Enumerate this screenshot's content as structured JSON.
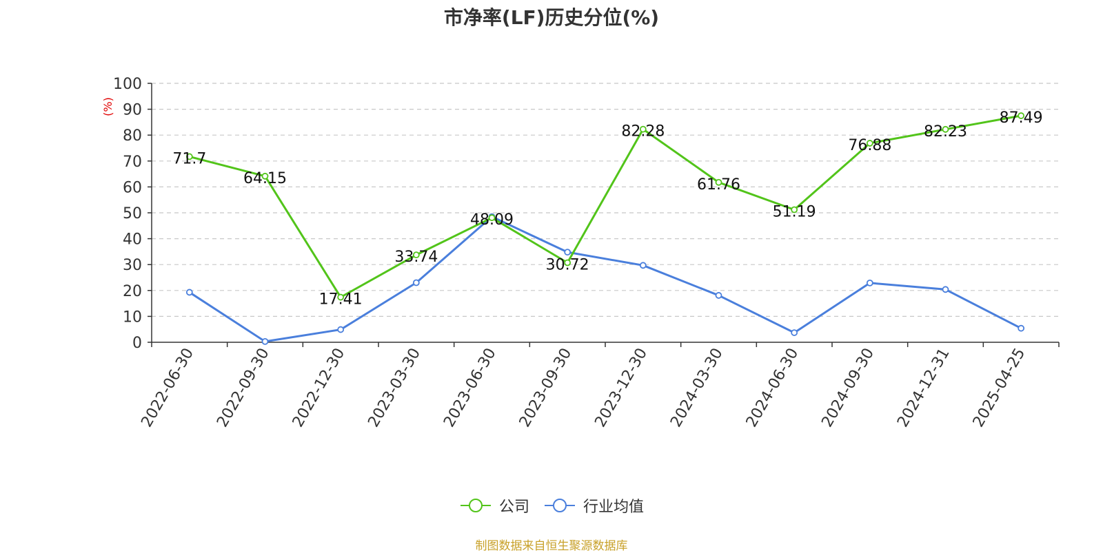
{
  "chart_data": {
    "type": "line",
    "title": "市净率(LF)历史分位(%)",
    "ylabel": "(%)",
    "xlabel": "",
    "ylim": [
      0,
      100
    ],
    "yticks": [
      0,
      10,
      20,
      30,
      40,
      50,
      60,
      70,
      80,
      90,
      100
    ],
    "grid": true,
    "legend_position": "bottom",
    "categories": [
      "2022-06-30",
      "2022-09-30",
      "2022-12-30",
      "2023-03-30",
      "2023-06-30",
      "2023-09-30",
      "2023-12-30",
      "2024-03-30",
      "2024-06-30",
      "2024-09-30",
      "2024-12-31",
      "2025-04-25"
    ],
    "series": [
      {
        "name": "公司",
        "color": "#52c41a",
        "show_labels": true,
        "values": [
          71.7,
          64.15,
          17.41,
          33.74,
          48.09,
          30.72,
          82.28,
          61.76,
          51.19,
          76.88,
          82.23,
          87.49
        ]
      },
      {
        "name": "行业均值",
        "color": "#4a7fdc",
        "show_labels": false,
        "values": [
          19.3,
          0.3,
          4.9,
          23.0,
          48.5,
          34.8,
          29.7,
          18.1,
          3.7,
          22.9,
          20.4,
          5.4
        ]
      }
    ]
  },
  "source": "制图数据来自恒生聚源数据库"
}
